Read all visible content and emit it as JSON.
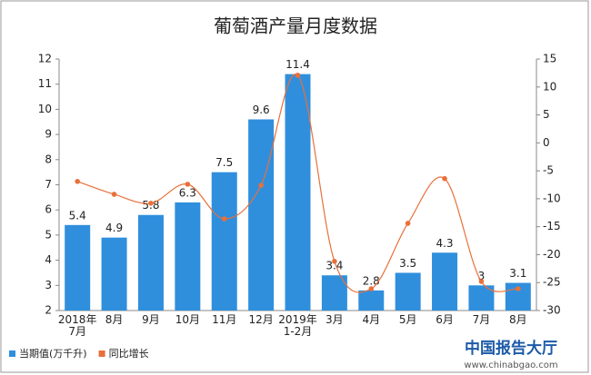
{
  "chart_data": {
    "type": "bar-line",
    "title": "葡萄酒产量月度数据",
    "categories": [
      "2018年\n7月",
      "8月",
      "9月",
      "10月",
      "11月",
      "12月",
      "2019年\n1-2月",
      "3月",
      "4月",
      "5月",
      "6月",
      "7月",
      "8月"
    ],
    "series": [
      {
        "name": "当期值(万千升)",
        "type": "bar",
        "color": "#2f8fdd",
        "values": [
          5.4,
          4.9,
          5.8,
          6.3,
          7.5,
          9.6,
          11.4,
          3.4,
          2.8,
          3.5,
          4.3,
          3,
          3.1
        ]
      },
      {
        "name": "同比增长",
        "type": "line",
        "axis": "y2",
        "color": "#e8703a",
        "values": [
          -6.9,
          -9.2,
          -10.8,
          -7.4,
          -13.6,
          -7.6,
          12.1,
          -21.2,
          -26.1,
          -14.4,
          -6.4,
          -24.8,
          -26.1
        ]
      }
    ],
    "ylim": [
      2,
      12
    ],
    "yticks": [
      2,
      3,
      4,
      5,
      6,
      7,
      8,
      9,
      10,
      11,
      12
    ],
    "y2lim": [
      -30,
      15
    ],
    "y2ticks": [
      -30,
      -25,
      -20,
      -15,
      -10,
      -5,
      0,
      5,
      10,
      15
    ],
    "legend": "bottom-left",
    "watermark": {
      "brand": "中国报告大厅",
      "url": "www.chinabgao.com"
    }
  }
}
